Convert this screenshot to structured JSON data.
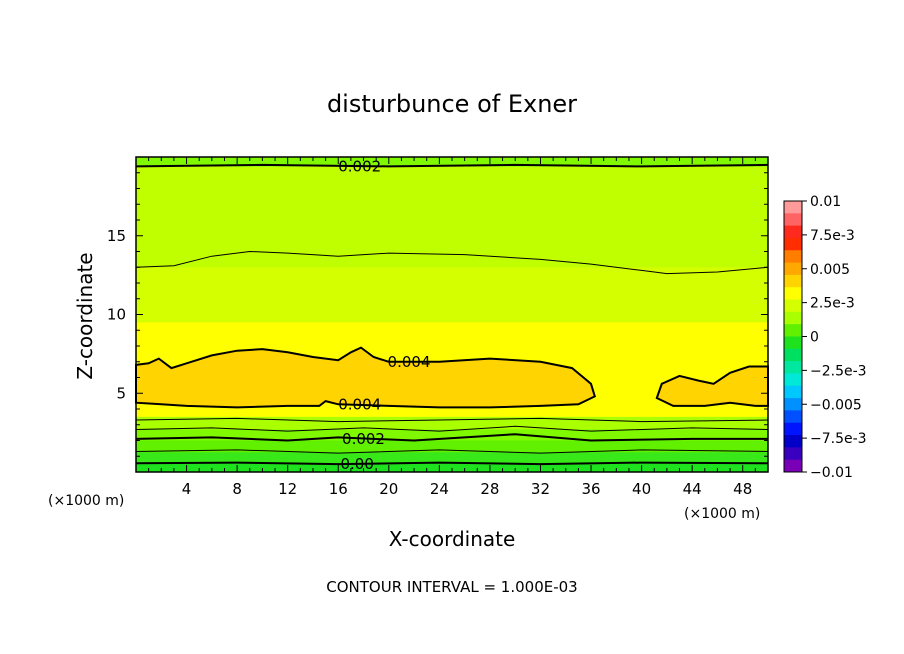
{
  "chart_data": {
    "type": "contour",
    "title": "disturbunce of Exner",
    "xlabel": "X-coordinate",
    "ylabel": "Z-coordinate",
    "x_unit_label": "(×1000 m)",
    "x_unit_label_right": "(×1000 m)",
    "xlim": [
      0,
      50
    ],
    "ylim": [
      0,
      20
    ],
    "x_ticks": [
      "4",
      "8",
      "12",
      "16",
      "20",
      "24",
      "28",
      "32",
      "36",
      "40",
      "44",
      "48"
    ],
    "x_tick_values": [
      4,
      8,
      12,
      16,
      20,
      24,
      28,
      32,
      36,
      40,
      44,
      48
    ],
    "y_ticks": [
      "5",
      "10",
      "15"
    ],
    "y_tick_values": [
      5,
      10,
      15
    ],
    "contour_interval_text": "CONTOUR INTERVAL = 1.000E-03",
    "contour_labels": [
      {
        "text": "0.002",
        "x": 17.7,
        "z": 19.4
      },
      {
        "text": "0.004",
        "x": 21.6,
        "z": 7.0
      },
      {
        "text": "0.004",
        "x": 17.7,
        "z": 4.3
      },
      {
        "text": "0.002",
        "x": 18.0,
        "z": 2.1
      },
      {
        "text": "0.00",
        "x": 17.5,
        "z": 0.5
      }
    ],
    "colorbar": {
      "labels": [
        "0.01",
        "7.5e-3",
        "0.005",
        "2.5e-3",
        "0",
        "−2.5e-3",
        "−0.005",
        "−7.5e-3",
        "−0.01"
      ],
      "colors": [
        "#ff9a9a",
        "#ff6464",
        "#ff2a1e",
        "#ff2e00",
        "#ff7e00",
        "#ffa800",
        "#ffd400",
        "#ffff00",
        "#d4ff00",
        "#aaff00",
        "#60f000",
        "#1ee21e",
        "#00e060",
        "#00e8a0",
        "#00e8d8",
        "#00c8ff",
        "#0090ff",
        "#0050ff",
        "#0014ff",
        "#0000c8",
        "#3a00c0",
        "#7a00b8"
      ]
    },
    "bands": [
      {
        "z_top": 0.55,
        "color": "#1ee21e"
      },
      {
        "z_top": 1.25,
        "color": "#38e818"
      },
      {
        "z_top": 2.0,
        "color": "#60f000"
      },
      {
        "z_top": 2.7,
        "color": "#80f800"
      },
      {
        "z_top": 3.5,
        "color": "#aaff00"
      },
      {
        "z_top": 9.5,
        "color": "#ffff00"
      },
      {
        "z_top": 13.0,
        "color": "#d4ff00"
      },
      {
        "z_top": 19.4,
        "color": "#bfff00"
      },
      {
        "z_top": 20.0,
        "color": "#80f800"
      }
    ]
  }
}
